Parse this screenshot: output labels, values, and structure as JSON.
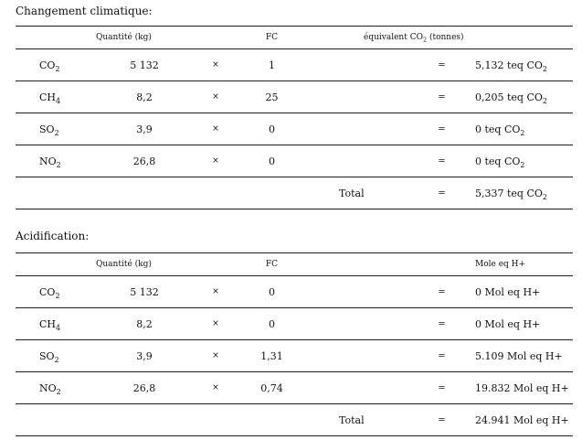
{
  "climate": {
    "title": "Changement climatique:",
    "headers": {
      "qty": "Quantité (kg)",
      "fc": "FC",
      "result": "équivalent CO₂ (tonnes)"
    },
    "rows": [
      {
        "formula": "CO",
        "sub": "2",
        "qty": "5 132",
        "times": "×",
        "fc": "1",
        "eq": "=",
        "result": "5,132 teq CO",
        "result_sub": "2"
      },
      {
        "formula": "CH",
        "sub": "4",
        "qty": "8,2",
        "times": "×",
        "fc": "25",
        "eq": "=",
        "result": "0,205 teq CO",
        "result_sub": "2"
      },
      {
        "formula": "SO",
        "sub": "2",
        "qty": "3,9",
        "times": "×",
        "fc": "0",
        "eq": "=",
        "result": "0 teq CO",
        "result_sub": "2"
      },
      {
        "formula": "NO",
        "sub": "2",
        "qty": "26,8",
        "times": "×",
        "fc": "0",
        "eq": "=",
        "result": "0 teq CO",
        "result_sub": "2"
      }
    ],
    "total": {
      "label": "Total",
      "eq": "=",
      "result": "5,337 teq CO",
      "result_sub": "2"
    }
  },
  "acid": {
    "title": "Acidification:",
    "headers": {
      "qty": "Quantité (kg)",
      "fc": "FC",
      "result": "Mole eq H+"
    },
    "rows": [
      {
        "formula": "CO",
        "sub": "2",
        "qty": "5 132",
        "times": "×",
        "fc": "0",
        "eq": "=",
        "result": "0 Mol eq H+"
      },
      {
        "formula": "CH",
        "sub": "4",
        "qty": "8,2",
        "times": "×",
        "fc": "0",
        "eq": "=",
        "result": "0 Mol eq H+"
      },
      {
        "formula": "SO",
        "sub": "2",
        "qty": "3,9",
        "times": "×",
        "fc": "1,31",
        "eq": "=",
        "result": "5.109 Mol eq H+"
      },
      {
        "formula": "NO",
        "sub": "2",
        "qty": "26,8",
        "times": "×",
        "fc": "0,74",
        "eq": "=",
        "result": "19.832 Mol eq H+"
      }
    ],
    "total": {
      "label": "Total",
      "eq": "=",
      "result": "24.941 Mol eq H+"
    }
  }
}
